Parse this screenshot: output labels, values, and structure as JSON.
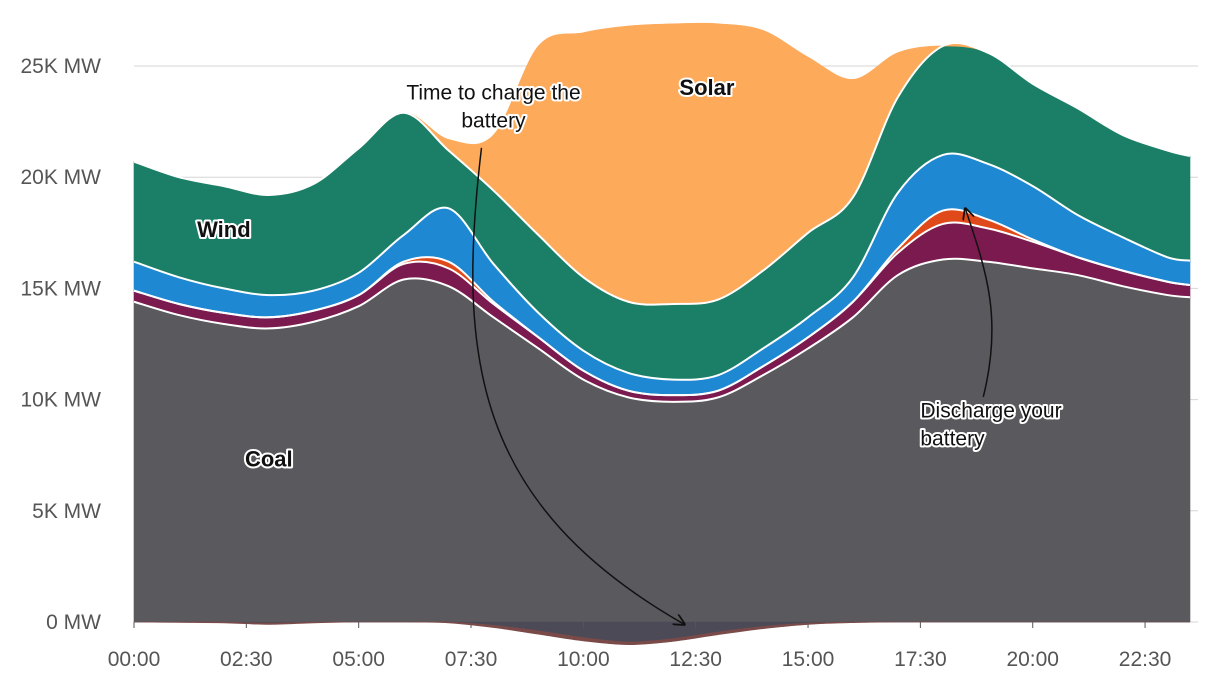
{
  "chart_data": {
    "type": "area",
    "stacked": true,
    "x": [
      "00:00",
      "01:00",
      "02:00",
      "03:00",
      "04:00",
      "05:00",
      "06:00",
      "07:00",
      "08:00",
      "09:00",
      "10:00",
      "11:00",
      "12:00",
      "13:00",
      "14:00",
      "15:00",
      "16:00",
      "17:00",
      "18:00",
      "19:00",
      "20:00",
      "21:00",
      "22:00",
      "23:00",
      "23:30"
    ],
    "xticks": [
      "00:00",
      "02:30",
      "05:00",
      "07:30",
      "10:00",
      "12:30",
      "15:00",
      "17:30",
      "20:00",
      "22:30"
    ],
    "yticks": [
      "0 MW",
      "5K MW",
      "10K MW",
      "15K MW",
      "20K MW",
      "25K MW"
    ],
    "ylim": [
      -1500,
      27000
    ],
    "grid": true,
    "series": [
      {
        "name": "Coal",
        "color": "#5a5a5e",
        "values": [
          14400,
          13800,
          13400,
          13200,
          13500,
          14200,
          15400,
          15100,
          13700,
          12300,
          10900,
          10100,
          9900,
          10100,
          11100,
          12300,
          13700,
          15600,
          16300,
          16200,
          15900,
          15600,
          15100,
          14700,
          14600
        ]
      },
      {
        "name": "",
        "color": "#7a1a4e",
        "values": [
          500,
          500,
          500,
          500,
          500,
          500,
          700,
          800,
          600,
          500,
          400,
          300,
          300,
          300,
          400,
          500,
          700,
          1000,
          1600,
          1500,
          1200,
          800,
          700,
          600,
          550
        ]
      },
      {
        "name": "",
        "color": "#e04a1a",
        "values": [
          0,
          0,
          0,
          0,
          0,
          0,
          100,
          300,
          100,
          0,
          0,
          0,
          0,
          0,
          0,
          0,
          0,
          200,
          600,
          400,
          100,
          0,
          0,
          0,
          0
        ]
      },
      {
        "name": "",
        "color": "#1e88d2",
        "values": [
          1300,
          1200,
          1100,
          1000,
          900,
          1000,
          1200,
          2400,
          1700,
          1100,
          900,
          800,
          700,
          700,
          800,
          900,
          1100,
          2500,
          2500,
          2500,
          2400,
          1900,
          1500,
          1100,
          1100
        ]
      },
      {
        "name": "Wind",
        "color": "#1a7f66",
        "values": [
          4500,
          4500,
          4600,
          4500,
          4800,
          5600,
          5500,
          2600,
          3300,
          3500,
          3300,
          3200,
          3400,
          3400,
          3500,
          3800,
          3600,
          4300,
          4900,
          5000,
          4600,
          4800,
          4600,
          4800,
          4700
        ]
      },
      {
        "name": "Solar",
        "color": "#fdaa5b",
        "values": [
          0,
          0,
          0,
          0,
          0,
          0,
          0,
          500,
          2500,
          8500,
          11000,
          12400,
          12600,
          12400,
          10800,
          7900,
          5300,
          2000,
          0,
          0,
          0,
          0,
          0,
          0,
          0
        ]
      }
    ],
    "negative_series": [
      {
        "name": "",
        "color": "#4d4a58",
        "values": [
          0,
          0,
          0,
          -50,
          0,
          0,
          0,
          0,
          -150,
          -400,
          -700,
          -900,
          -750,
          -450,
          -200,
          -50,
          0,
          0,
          0,
          0,
          0,
          0,
          0,
          0,
          0
        ]
      },
      {
        "name": "",
        "color": "#7a4a48",
        "values": [
          0,
          -20,
          -40,
          -60,
          -40,
          0,
          0,
          -40,
          -100,
          -150,
          -150,
          -120,
          -120,
          -120,
          -100,
          -60,
          -30,
          0,
          0,
          0,
          0,
          0,
          0,
          0,
          0
        ]
      }
    ],
    "labels": [
      {
        "key": "coal",
        "text": "Coal",
        "x": "03:00",
        "y": 7000
      },
      {
        "key": "wind",
        "text": "Wind",
        "x": "02:00",
        "y": 17300
      },
      {
        "key": "solar",
        "text": "Solar",
        "x": "12:45",
        "y": 23700
      }
    ],
    "annotations": [
      {
        "key": "charge",
        "lines": [
          "Time to charge the",
          "battery"
        ],
        "text_x": "08:00",
        "text_y": 23500,
        "align": "middle",
        "arrow_from": [
          "08:00",
          21500
        ],
        "arrow_to": [
          "12:15",
          -200
        ]
      },
      {
        "key": "discharge",
        "lines": [
          "Discharge your",
          "battery"
        ],
        "text_x": "17:30",
        "text_y": 9200,
        "align": "start",
        "arrow_from": [
          "19:10",
          10300
        ],
        "arrow_to": [
          "18:30",
          18500
        ]
      }
    ]
  }
}
